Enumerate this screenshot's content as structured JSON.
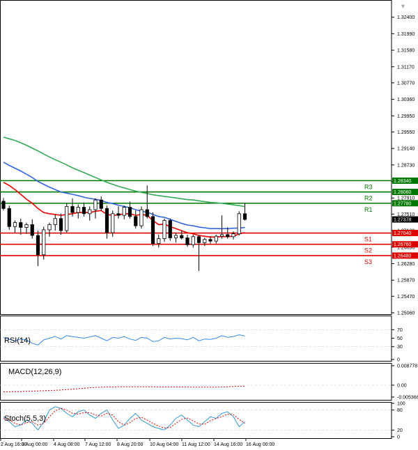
{
  "chart_data": [
    {
      "type": "candlestick",
      "panel": "price",
      "ylim": [
        1.2506,
        1.3255
      ],
      "y_ticks": [
        "1.32400",
        "1.31990",
        "1.31580",
        "1.31170",
        "1.30770",
        "1.30360",
        "1.29950",
        "1.29550",
        "1.29140",
        "1.28730",
        "1.28320",
        "1.27910",
        "1.27510",
        "1.27100",
        "1.26690",
        "1.26280",
        "1.25870",
        "1.25470",
        "1.25060"
      ],
      "price_tags": [
        {
          "label": "1.28340",
          "value": 1.2834,
          "color": "#007700"
        },
        {
          "label": "1.28060",
          "value": 1.2806,
          "color": "#007700"
        },
        {
          "label": "1.27780",
          "value": 1.2778,
          "color": "#007700"
        },
        {
          "label": "1.27378",
          "value": 1.27378,
          "color": "#000000"
        },
        {
          "label": "1.27040",
          "value": 1.2704,
          "color": "#dd0000"
        },
        {
          "label": "1.26760",
          "value": 1.2676,
          "color": "#dd0000"
        },
        {
          "label": "1.26480",
          "value": 1.2648,
          "color": "#dd0000"
        }
      ],
      "levels": [
        {
          "name": "R3",
          "value": 1.2834,
          "color": "#007700"
        },
        {
          "name": "R2",
          "value": 1.2806,
          "color": "#007700"
        },
        {
          "name": "R1",
          "value": 1.2778,
          "color": "#007700"
        },
        {
          "name": "S1",
          "value": 1.2704,
          "color": "#dd0000"
        },
        {
          "name": "S2",
          "value": 1.2676,
          "color": "#dd0000"
        },
        {
          "name": "S3",
          "value": 1.2648,
          "color": "#dd0000"
        }
      ],
      "candles": [
        [
          1.2783,
          1.2791,
          1.276,
          1.2765
        ],
        [
          1.2765,
          1.2772,
          1.2712,
          1.272
        ],
        [
          1.272,
          1.2735,
          1.2705,
          1.273
        ],
        [
          1.273,
          1.274,
          1.27,
          1.2718
        ],
        [
          1.2718,
          1.273,
          1.2702,
          1.2725
        ],
        [
          1.2725,
          1.2738,
          1.269,
          1.2698
        ],
        [
          1.2698,
          1.271,
          1.2622,
          1.265
        ],
        [
          1.265,
          1.272,
          1.2638,
          1.2712
        ],
        [
          1.2712,
          1.273,
          1.2695,
          1.2725
        ],
        [
          1.2725,
          1.275,
          1.271,
          1.274
        ],
        [
          1.274,
          1.2752,
          1.27,
          1.271
        ],
        [
          1.271,
          1.2778,
          1.2705,
          1.277
        ],
        [
          1.277,
          1.279,
          1.2745,
          1.2755
        ],
        [
          1.2755,
          1.2775,
          1.274,
          1.2768
        ],
        [
          1.2768,
          1.278,
          1.2745,
          1.2752
        ],
        [
          1.2752,
          1.277,
          1.2735,
          1.2762
        ],
        [
          1.2762,
          1.279,
          1.274,
          1.2786
        ],
        [
          1.2786,
          1.2795,
          1.276,
          1.2765
        ],
        [
          1.2765,
          1.2772,
          1.269,
          1.2705
        ],
        [
          1.2705,
          1.276,
          1.2695,
          1.2752
        ],
        [
          1.2752,
          1.277,
          1.274,
          1.2748
        ],
        [
          1.2748,
          1.2772,
          1.2738,
          1.2768
        ],
        [
          1.2768,
          1.2782,
          1.274,
          1.2745
        ],
        [
          1.2745,
          1.276,
          1.2715,
          1.2722
        ],
        [
          1.2722,
          1.277,
          1.2715,
          1.2762
        ],
        [
          1.2762,
          1.2822,
          1.274,
          1.2745
        ],
        [
          1.2745,
          1.2755,
          1.2672,
          1.2678
        ],
        [
          1.2678,
          1.27,
          1.2668,
          1.269
        ],
        [
          1.269,
          1.274,
          1.2682,
          1.2735
        ],
        [
          1.2735,
          1.274,
          1.2685,
          1.2692
        ],
        [
          1.2692,
          1.2705,
          1.268,
          1.2698
        ],
        [
          1.2698,
          1.271,
          1.2688,
          1.2692
        ],
        [
          1.2692,
          1.27,
          1.267,
          1.2675
        ],
        [
          1.2675,
          1.27,
          1.2668,
          1.2695
        ],
        [
          1.2695,
          1.27,
          1.261,
          1.268
        ],
        [
          1.268,
          1.2692,
          1.2672,
          1.2688
        ],
        [
          1.2688,
          1.2696,
          1.2678,
          1.2684
        ],
        [
          1.2684,
          1.27,
          1.2678,
          1.2696
        ],
        [
          1.2696,
          1.2748,
          1.269,
          1.27
        ],
        [
          1.27,
          1.2718,
          1.269,
          1.2695
        ],
        [
          1.2695,
          1.2708,
          1.2688,
          1.2702
        ],
        [
          1.2702,
          1.2758,
          1.2698,
          1.2752
        ],
        [
          1.2752,
          1.2778,
          1.2735,
          1.27378
        ]
      ],
      "indicators": [
        {
          "name": "EMA red",
          "color": "#ee0000",
          "values": [
            1.283,
            1.2822,
            1.2812,
            1.28,
            1.2788,
            1.2778,
            1.2765,
            1.2755,
            1.2752,
            1.275,
            1.2748,
            1.275,
            1.2752,
            1.2755,
            1.2755,
            1.2755,
            1.2758,
            1.276,
            1.275,
            1.2748,
            1.2749,
            1.2752,
            1.2752,
            1.2748,
            1.275,
            1.2748,
            1.2735,
            1.2725,
            1.2726,
            1.272,
            1.2715,
            1.271,
            1.2705,
            1.2702,
            1.2698,
            1.2696,
            1.2694,
            1.2694,
            1.2695,
            1.2695,
            1.2696,
            1.2702,
            1.2705
          ]
        },
        {
          "name": "EMA blue",
          "color": "#3366dd",
          "values": [
            1.288,
            1.2872,
            1.2865,
            1.2858,
            1.285,
            1.2842,
            1.2832,
            1.2825,
            1.2818,
            1.2812,
            1.2806,
            1.2803,
            1.28,
            1.2797,
            1.2793,
            1.279,
            1.2788,
            1.2785,
            1.278,
            1.2777,
            1.2773,
            1.277,
            1.2767,
            1.2762,
            1.2758,
            1.2756,
            1.275,
            1.2745,
            1.2743,
            1.2738,
            1.2733,
            1.2728,
            1.2724,
            1.2722,
            1.2719,
            1.2717,
            1.2715,
            1.2715,
            1.2715,
            1.2715,
            1.2716,
            1.2716,
            1.2718
          ]
        },
        {
          "name": "SMA green",
          "color": "#33aa55",
          "values": [
            1.2942,
            1.2938,
            1.2934,
            1.2928,
            1.2922,
            1.2915,
            1.2908,
            1.29,
            1.2893,
            1.2886,
            1.288,
            1.2873,
            1.2866,
            1.286,
            1.2854,
            1.2848,
            1.2842,
            1.2836,
            1.283,
            1.2825,
            1.282,
            1.2816,
            1.2812,
            1.2808,
            1.2805,
            1.2802,
            1.2799,
            1.2797,
            1.2795,
            1.2793,
            1.2791,
            1.2789,
            1.2787,
            1.2786,
            1.2784,
            1.2782,
            1.278,
            1.2779,
            1.2778,
            1.2776,
            1.2774,
            1.2772,
            1.277
          ]
        }
      ]
    },
    {
      "type": "line",
      "panel": "RSI",
      "title": "RSI(14)",
      "ylim": [
        0,
        100
      ],
      "y_ticks": [
        "70",
        "50",
        "30",
        "0"
      ],
      "series": [
        {
          "color": "#3388ee",
          "values": [
            52,
            47,
            44,
            48,
            46,
            38,
            34,
            46,
            50,
            54,
            48,
            56,
            54,
            52,
            50,
            53,
            56,
            50,
            44,
            52,
            50,
            54,
            48,
            45,
            52,
            50,
            42,
            44,
            52,
            48,
            50,
            49,
            46,
            52,
            44,
            48,
            47,
            50,
            56,
            52,
            54,
            58,
            55
          ]
        }
      ]
    },
    {
      "type": "line",
      "panel": "MACD",
      "title": "MACD(12,26,9)",
      "ylim": [
        -0.005366,
        0.008778
      ],
      "y_ticks": [
        "0.008778",
        "0.00",
        "-0.005366"
      ],
      "series": [
        {
          "color": "#dd0000",
          "dashed": true,
          "values": [
            -0.003,
            -0.003,
            -0.0029,
            -0.0029,
            -0.0028,
            -0.0027,
            -0.0026,
            -0.0025,
            -0.0024,
            -0.0023,
            -0.0022,
            -0.002,
            -0.0018,
            -0.0016,
            -0.0014,
            -0.0012,
            -0.001,
            -0.0009,
            -0.0008,
            -0.0008,
            -0.0007,
            -0.0007,
            -0.0007,
            -0.0007,
            -0.0007,
            -0.0007,
            -0.0007,
            -0.0008,
            -0.0008,
            -0.0008,
            -0.0008,
            -0.0008,
            -0.0008,
            -0.0009,
            -0.0009,
            -0.0009,
            -0.0009,
            -0.0009,
            -0.0008,
            -0.0007,
            -0.0006,
            -0.0005,
            -0.0004
          ]
        }
      ]
    },
    {
      "type": "line",
      "panel": "Stochastic",
      "title": "Stoch(5,5,3)",
      "ylim": [
        0,
        100
      ],
      "y_ticks": [
        "100",
        "80",
        "20",
        "0"
      ],
      "series": [
        {
          "color": "#3399cc",
          "values": [
            60,
            45,
            30,
            35,
            50,
            40,
            20,
            45,
            80,
            90,
            85,
            70,
            60,
            75,
            80,
            65,
            55,
            70,
            80,
            50,
            25,
            35,
            55,
            70,
            50,
            40,
            30,
            25,
            20,
            35,
            55,
            65,
            50,
            35,
            30,
            45,
            60,
            55,
            70,
            75,
            60,
            30,
            45
          ]
        },
        {
          "color": "#dd0000",
          "dashed": true,
          "values": [
            55,
            50,
            40,
            35,
            42,
            45,
            35,
            40,
            60,
            78,
            85,
            80,
            70,
            68,
            72,
            72,
            65,
            62,
            70,
            65,
            45,
            35,
            42,
            55,
            58,
            50,
            40,
            32,
            26,
            28,
            40,
            52,
            56,
            48,
            38,
            38,
            48,
            55,
            60,
            68,
            66,
            52,
            40
          ]
        }
      ]
    },
    {
      "type": "time_axis",
      "x_labels": [
        "2 Aug 16:00",
        "3 Aug 00:00",
        "4 Aug 08:00",
        "7 Aug 12:00",
        "8 Aug 20:00",
        "10 Aug 04:00",
        "11 Aug 12:00",
        "14 Aug 16:00",
        "16 Aug 00:00"
      ]
    }
  ]
}
